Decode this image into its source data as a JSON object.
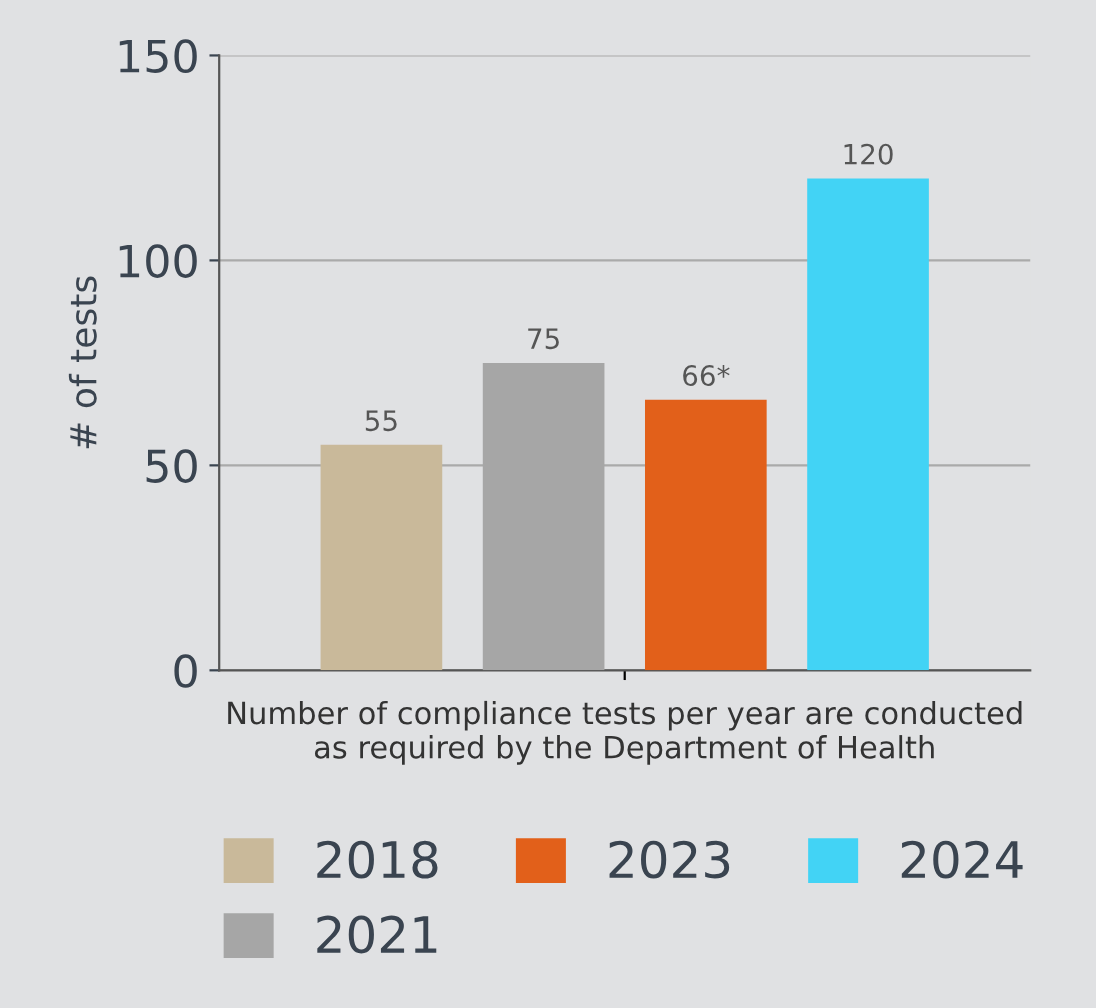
{
  "chart_data": {
    "type": "bar",
    "categories": [
      null
    ],
    "xlabel": "Number of compliance tests per year are conducted\nas required by the Department of Health",
    "ylabel": "# of tests",
    "series": [
      {
        "name": "2018",
        "color": "#c9b99a",
        "values": [
          55
        ],
        "value_labels": [
          "55"
        ]
      },
      {
        "name": "2021",
        "color": "#a6a6a6",
        "values": [
          75
        ],
        "value_labels": [
          "75"
        ]
      },
      {
        "name": "2023",
        "color": "#e2601a",
        "values": [
          66
        ],
        "value_labels": [
          "66*"
        ]
      },
      {
        "name": "2024",
        "color": "#42d3f5",
        "values": [
          120
        ],
        "value_labels": [
          "120"
        ]
      }
    ],
    "ylim": [
      0,
      150
    ],
    "yticks": [
      0,
      50,
      100,
      150
    ],
    "grid": "y",
    "legend": "bottom"
  }
}
